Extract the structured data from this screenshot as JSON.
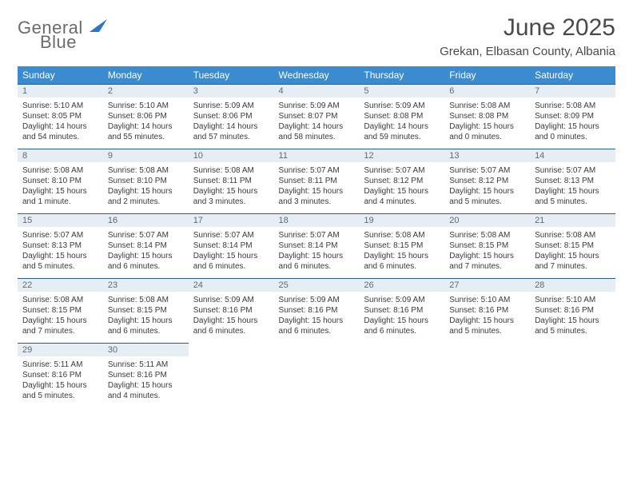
{
  "logo": {
    "line1": "General",
    "line2": "Blue"
  },
  "title": "June 2025",
  "location": "Grekan, Elbasan County, Albania",
  "colors": {
    "header_bg": "#3b8bd0",
    "header_text": "#ffffff",
    "daynum_bg": "#e7eef3",
    "daynum_border": "#2a5d8a",
    "text": "#3a3a3a",
    "logo_gray": "#6b6b6b",
    "logo_blue": "#2977c9"
  },
  "day_headers": [
    "Sunday",
    "Monday",
    "Tuesday",
    "Wednesday",
    "Thursday",
    "Friday",
    "Saturday"
  ],
  "weeks": [
    [
      {
        "n": "1",
        "sr": "Sunrise: 5:10 AM",
        "ss": "Sunset: 8:05 PM",
        "d1": "Daylight: 14 hours",
        "d2": "and 54 minutes."
      },
      {
        "n": "2",
        "sr": "Sunrise: 5:10 AM",
        "ss": "Sunset: 8:06 PM",
        "d1": "Daylight: 14 hours",
        "d2": "and 55 minutes."
      },
      {
        "n": "3",
        "sr": "Sunrise: 5:09 AM",
        "ss": "Sunset: 8:06 PM",
        "d1": "Daylight: 14 hours",
        "d2": "and 57 minutes."
      },
      {
        "n": "4",
        "sr": "Sunrise: 5:09 AM",
        "ss": "Sunset: 8:07 PM",
        "d1": "Daylight: 14 hours",
        "d2": "and 58 minutes."
      },
      {
        "n": "5",
        "sr": "Sunrise: 5:09 AM",
        "ss": "Sunset: 8:08 PM",
        "d1": "Daylight: 14 hours",
        "d2": "and 59 minutes."
      },
      {
        "n": "6",
        "sr": "Sunrise: 5:08 AM",
        "ss": "Sunset: 8:08 PM",
        "d1": "Daylight: 15 hours",
        "d2": "and 0 minutes."
      },
      {
        "n": "7",
        "sr": "Sunrise: 5:08 AM",
        "ss": "Sunset: 8:09 PM",
        "d1": "Daylight: 15 hours",
        "d2": "and 0 minutes."
      }
    ],
    [
      {
        "n": "8",
        "sr": "Sunrise: 5:08 AM",
        "ss": "Sunset: 8:10 PM",
        "d1": "Daylight: 15 hours",
        "d2": "and 1 minute."
      },
      {
        "n": "9",
        "sr": "Sunrise: 5:08 AM",
        "ss": "Sunset: 8:10 PM",
        "d1": "Daylight: 15 hours",
        "d2": "and 2 minutes."
      },
      {
        "n": "10",
        "sr": "Sunrise: 5:08 AM",
        "ss": "Sunset: 8:11 PM",
        "d1": "Daylight: 15 hours",
        "d2": "and 3 minutes."
      },
      {
        "n": "11",
        "sr": "Sunrise: 5:07 AM",
        "ss": "Sunset: 8:11 PM",
        "d1": "Daylight: 15 hours",
        "d2": "and 3 minutes."
      },
      {
        "n": "12",
        "sr": "Sunrise: 5:07 AM",
        "ss": "Sunset: 8:12 PM",
        "d1": "Daylight: 15 hours",
        "d2": "and 4 minutes."
      },
      {
        "n": "13",
        "sr": "Sunrise: 5:07 AM",
        "ss": "Sunset: 8:12 PM",
        "d1": "Daylight: 15 hours",
        "d2": "and 5 minutes."
      },
      {
        "n": "14",
        "sr": "Sunrise: 5:07 AM",
        "ss": "Sunset: 8:13 PM",
        "d1": "Daylight: 15 hours",
        "d2": "and 5 minutes."
      }
    ],
    [
      {
        "n": "15",
        "sr": "Sunrise: 5:07 AM",
        "ss": "Sunset: 8:13 PM",
        "d1": "Daylight: 15 hours",
        "d2": "and 5 minutes."
      },
      {
        "n": "16",
        "sr": "Sunrise: 5:07 AM",
        "ss": "Sunset: 8:14 PM",
        "d1": "Daylight: 15 hours",
        "d2": "and 6 minutes."
      },
      {
        "n": "17",
        "sr": "Sunrise: 5:07 AM",
        "ss": "Sunset: 8:14 PM",
        "d1": "Daylight: 15 hours",
        "d2": "and 6 minutes."
      },
      {
        "n": "18",
        "sr": "Sunrise: 5:07 AM",
        "ss": "Sunset: 8:14 PM",
        "d1": "Daylight: 15 hours",
        "d2": "and 6 minutes."
      },
      {
        "n": "19",
        "sr": "Sunrise: 5:08 AM",
        "ss": "Sunset: 8:15 PM",
        "d1": "Daylight: 15 hours",
        "d2": "and 6 minutes."
      },
      {
        "n": "20",
        "sr": "Sunrise: 5:08 AM",
        "ss": "Sunset: 8:15 PM",
        "d1": "Daylight: 15 hours",
        "d2": "and 7 minutes."
      },
      {
        "n": "21",
        "sr": "Sunrise: 5:08 AM",
        "ss": "Sunset: 8:15 PM",
        "d1": "Daylight: 15 hours",
        "d2": "and 7 minutes."
      }
    ],
    [
      {
        "n": "22",
        "sr": "Sunrise: 5:08 AM",
        "ss": "Sunset: 8:15 PM",
        "d1": "Daylight: 15 hours",
        "d2": "and 7 minutes."
      },
      {
        "n": "23",
        "sr": "Sunrise: 5:08 AM",
        "ss": "Sunset: 8:15 PM",
        "d1": "Daylight: 15 hours",
        "d2": "and 6 minutes."
      },
      {
        "n": "24",
        "sr": "Sunrise: 5:09 AM",
        "ss": "Sunset: 8:16 PM",
        "d1": "Daylight: 15 hours",
        "d2": "and 6 minutes."
      },
      {
        "n": "25",
        "sr": "Sunrise: 5:09 AM",
        "ss": "Sunset: 8:16 PM",
        "d1": "Daylight: 15 hours",
        "d2": "and 6 minutes."
      },
      {
        "n": "26",
        "sr": "Sunrise: 5:09 AM",
        "ss": "Sunset: 8:16 PM",
        "d1": "Daylight: 15 hours",
        "d2": "and 6 minutes."
      },
      {
        "n": "27",
        "sr": "Sunrise: 5:10 AM",
        "ss": "Sunset: 8:16 PM",
        "d1": "Daylight: 15 hours",
        "d2": "and 5 minutes."
      },
      {
        "n": "28",
        "sr": "Sunrise: 5:10 AM",
        "ss": "Sunset: 8:16 PM",
        "d1": "Daylight: 15 hours",
        "d2": "and 5 minutes."
      }
    ],
    [
      {
        "n": "29",
        "sr": "Sunrise: 5:11 AM",
        "ss": "Sunset: 8:16 PM",
        "d1": "Daylight: 15 hours",
        "d2": "and 5 minutes."
      },
      {
        "n": "30",
        "sr": "Sunrise: 5:11 AM",
        "ss": "Sunset: 8:16 PM",
        "d1": "Daylight: 15 hours",
        "d2": "and 4 minutes."
      },
      null,
      null,
      null,
      null,
      null
    ]
  ]
}
